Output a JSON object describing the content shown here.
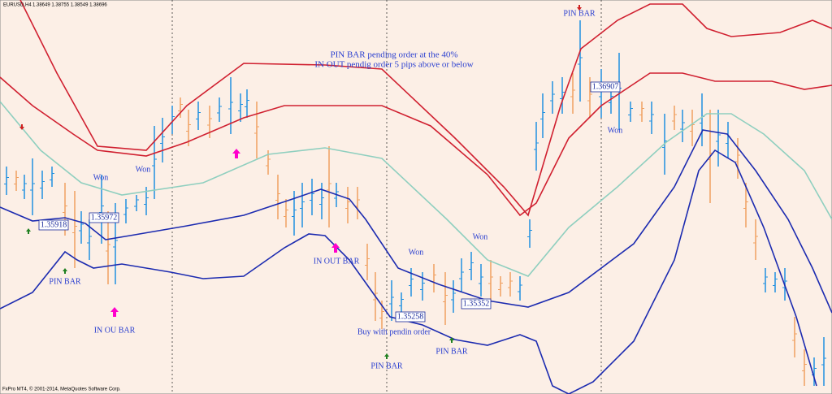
{
  "header": {
    "symbol": "EURUSD,H4",
    "quote": "1.38649 1.38755 1.38549 1.38696"
  },
  "notes": {
    "line1": "PIN BAR pending  order at the 40%",
    "line2": "IN OUT pendig order 5 pips above or below"
  },
  "annotations": [
    "PIN BAR",
    "Won",
    "Won",
    "Won",
    "Won",
    "Won",
    "PIN BAR",
    "IN OU BAR",
    "IN OUT BAR",
    "Buy with pendin order",
    "PIN BAR",
    "PIN BAR"
  ],
  "price_labels": [
    "1.36907",
    "1.35918",
    "1.35972",
    "1.35258",
    "1.35352"
  ],
  "footer": "FxPro MT4, © 2001-2014, MetaQuotes Software Corp."
}
